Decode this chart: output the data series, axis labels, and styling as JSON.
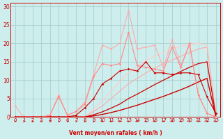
{
  "xlabel": "Vent moyen/en rafales ( km/h )",
  "xlim": [
    -0.5,
    23.5
  ],
  "ylim": [
    0,
    31
  ],
  "yticks": [
    0,
    5,
    10,
    15,
    20,
    25,
    30
  ],
  "xticks": [
    0,
    1,
    2,
    3,
    4,
    5,
    6,
    7,
    8,
    9,
    10,
    11,
    12,
    13,
    14,
    15,
    16,
    17,
    18,
    19,
    20,
    21,
    22,
    23
  ],
  "bg_color": "#cdeeed",
  "grid_color": "#a8d0ce",
  "smooth1_x": [
    0,
    1,
    2,
    3,
    4,
    5,
    6,
    7,
    8,
    9,
    10,
    11,
    12,
    13,
    14,
    15,
    16,
    17,
    18,
    19,
    20,
    21,
    22,
    23
  ],
  "smooth1_y": [
    0,
    0,
    0,
    0,
    0,
    0,
    0,
    0,
    0,
    0.3,
    0.7,
    1.2,
    1.8,
    2.5,
    3.2,
    4.0,
    4.8,
    5.6,
    6.5,
    7.4,
    8.4,
    9.5,
    10.5,
    0.2
  ],
  "smooth1_color": "#cc0000",
  "smooth1_lw": 1.0,
  "smooth2_x": [
    0,
    1,
    2,
    3,
    4,
    5,
    6,
    7,
    8,
    9,
    10,
    11,
    12,
    13,
    14,
    15,
    16,
    17,
    18,
    19,
    20,
    21,
    22,
    23
  ],
  "smooth2_y": [
    0,
    0,
    0,
    0,
    0,
    0,
    0,
    0,
    0,
    0.6,
    1.4,
    2.4,
    3.5,
    5.0,
    6.2,
    7.5,
    8.8,
    10.0,
    11.2,
    12.4,
    13.5,
    14.5,
    15.0,
    0.5
  ],
  "smooth2_color": "#cc0000",
  "smooth2_lw": 0.9,
  "smooth3_x": [
    0,
    1,
    2,
    3,
    4,
    5,
    6,
    7,
    8,
    9,
    10,
    11,
    12,
    13,
    14,
    15,
    16,
    17,
    18,
    19,
    20,
    21,
    22,
    23
  ],
  "smooth3_y": [
    0,
    0,
    0,
    0,
    0,
    0,
    0,
    0,
    0,
    1.5,
    3.0,
    5.0,
    7.0,
    9.0,
    10.5,
    12.0,
    13.2,
    14.5,
    15.5,
    16.5,
    17.5,
    18.5,
    19.0,
    1.0
  ],
  "smooth3_color": "#ffaaaa",
  "smooth3_lw": 0.8,
  "smooth4_x": [
    0,
    1,
    2,
    3,
    4,
    5,
    6,
    7,
    8,
    9,
    10,
    11,
    12,
    13,
    14,
    15,
    16,
    17,
    18,
    19,
    20,
    21,
    22,
    23
  ],
  "smooth4_y": [
    0,
    0,
    0,
    0,
    0,
    0,
    0,
    0,
    0,
    2.0,
    4.5,
    7.0,
    9.5,
    12.0,
    13.5,
    15.5,
    16.5,
    17.5,
    18.5,
    19.2,
    19.8,
    20.0,
    19.5,
    1.5
  ],
  "smooth4_color": "#ffcccc",
  "smooth4_lw": 0.8,
  "jagged1_x": [
    0,
    1,
    2,
    3,
    4,
    5,
    6,
    7,
    8,
    9,
    10,
    11,
    12,
    13,
    14,
    15,
    16,
    17,
    18,
    19,
    20,
    21,
    22,
    23
  ],
  "jagged1_y": [
    0,
    0,
    0,
    0,
    0,
    0,
    0,
    0.5,
    2.5,
    5.0,
    9.0,
    10.5,
    12.5,
    13.0,
    12.5,
    15.0,
    12.0,
    12.0,
    11.5,
    12.0,
    12.0,
    11.5,
    5.5,
    1.0
  ],
  "jagged1_color": "#cc0000",
  "jagged1_lw": 0.8,
  "jagged2_x": [
    0,
    1,
    2,
    3,
    4,
    5,
    6,
    7,
    8,
    9,
    10,
    11,
    12,
    13,
    14,
    15,
    16,
    17,
    18,
    19,
    20,
    21,
    22,
    23
  ],
  "jagged2_y": [
    3.0,
    0,
    0,
    0,
    0.5,
    6.0,
    0.5,
    1.5,
    4.0,
    11.5,
    19.5,
    18.5,
    20.0,
    29.0,
    18.5,
    19.0,
    19.5,
    13.5,
    21.0,
    14.0,
    19.5,
    6.0,
    1.0,
    0
  ],
  "jagged2_color": "#ffaaaa",
  "jagged2_lw": 0.8,
  "jagged3_x": [
    0,
    1,
    2,
    3,
    4,
    5,
    6,
    7,
    8,
    9,
    10,
    11,
    12,
    13,
    14,
    15,
    16,
    17,
    18,
    19,
    20,
    21,
    22,
    23
  ],
  "jagged3_y": [
    0,
    0,
    0,
    0,
    0.5,
    5.5,
    0.5,
    1.5,
    3.5,
    11.0,
    14.5,
    14.0,
    14.5,
    23.0,
    14.0,
    13.5,
    13.0,
    12.5,
    19.0,
    13.5,
    20.0,
    6.0,
    1.0,
    0
  ],
  "jagged3_color": "#ff8888",
  "jagged3_lw": 0.8,
  "arrow_color": "#cc0000",
  "marker_color": "#cc0000",
  "marker_size": 1.8
}
